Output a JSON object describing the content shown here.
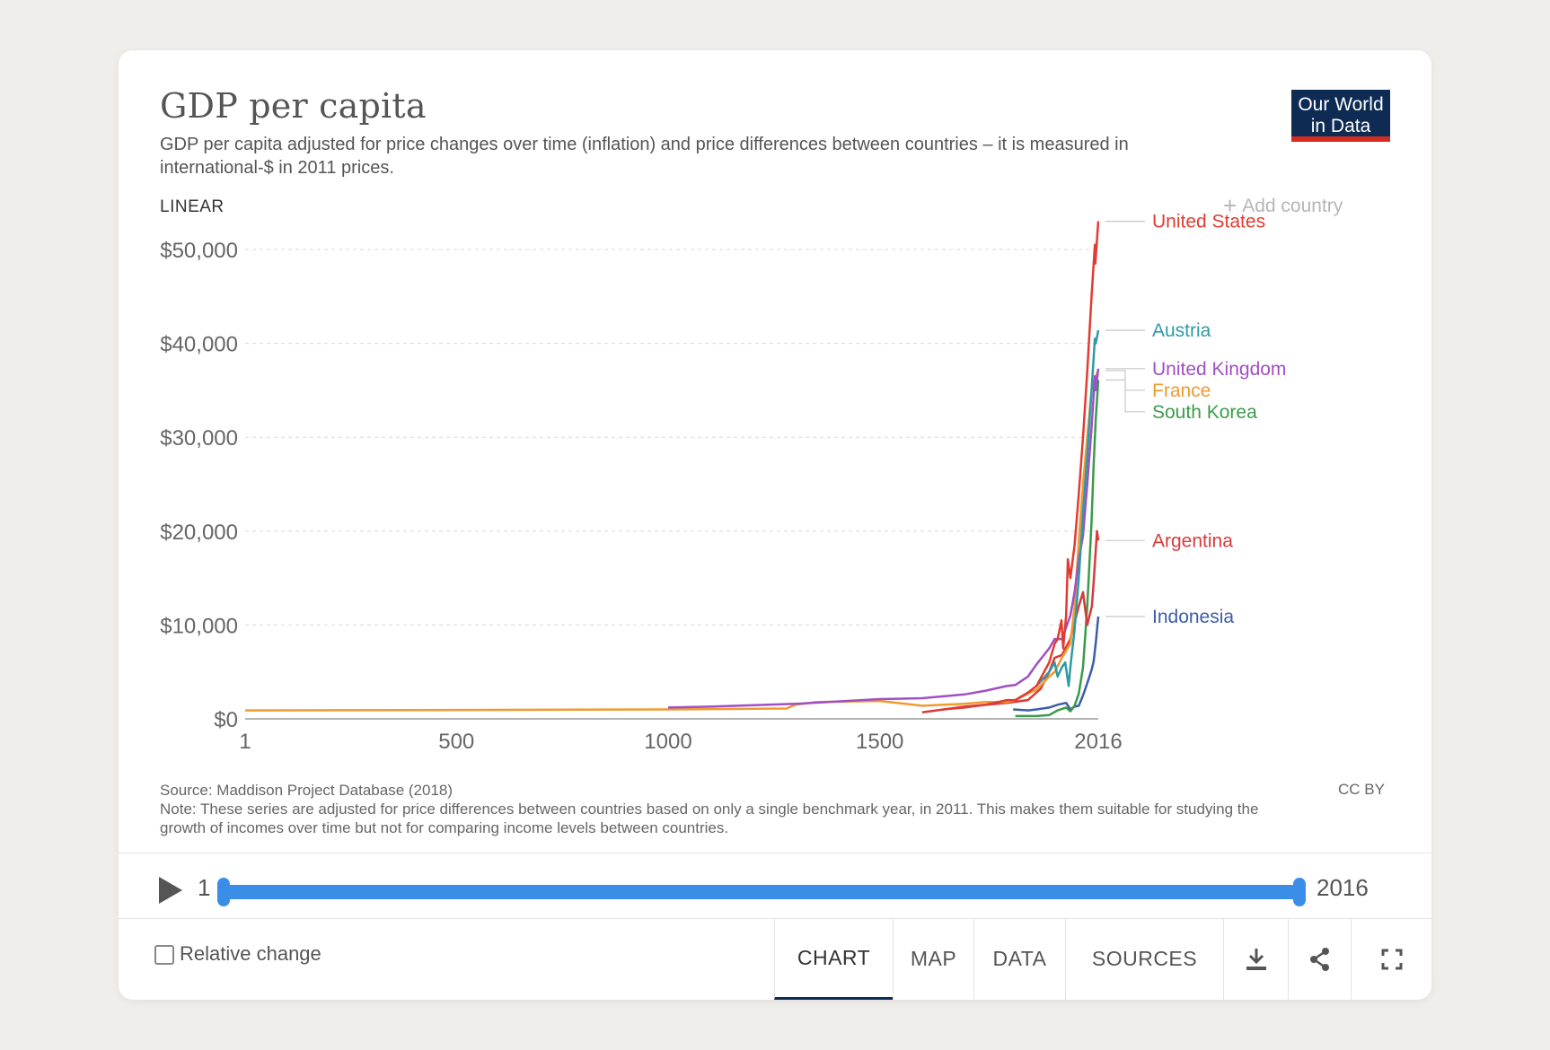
{
  "header": {
    "title": "GDP per capita",
    "subtitle": "GDP per capita adjusted for price changes over time (inflation) and price differences between countries – it is measured in international-$ in 2011 prices.",
    "logo_line1": "Our World",
    "logo_line2": "in Data"
  },
  "controls": {
    "scale_label": "LINEAR",
    "add_country_label": "Add country"
  },
  "chart_data": {
    "type": "line",
    "xlim": [
      1,
      2016
    ],
    "ylim": [
      0,
      50000
    ],
    "x_ticks": [
      1,
      500,
      1000,
      1500,
      2016
    ],
    "y_ticks": [
      0,
      10000,
      20000,
      30000,
      40000,
      50000
    ],
    "y_tick_labels": [
      "$0",
      "$10,000",
      "$20,000",
      "$30,000",
      "$40,000",
      "$50,000"
    ],
    "grid": true,
    "legend": "right",
    "series": [
      {
        "name": "Indonesia",
        "color": "#3c5da8",
        "x": [
          1815,
          1850,
          1870,
          1900,
          1920,
          1940,
          1950,
          1960,
          1970,
          1980,
          1990,
          2000,
          2005,
          2010,
          2016
        ],
        "y": [
          1000,
          900,
          1000,
          1200,
          1500,
          1700,
          1000,
          1300,
          1400,
          2500,
          3800,
          5200,
          6100,
          8100,
          10900
        ]
      },
      {
        "name": "South Korea",
        "color": "#3a9b49",
        "x": [
          1820,
          1870,
          1900,
          1920,
          1940,
          1950,
          1960,
          1970,
          1980,
          1990,
          2000,
          2005,
          2010,
          2016
        ],
        "y": [
          300,
          300,
          400,
          900,
          1200,
          800,
          1400,
          2700,
          5500,
          12000,
          21000,
          27000,
          32000,
          36100
        ]
      },
      {
        "name": "Argentina",
        "color": "#d73a3a",
        "x": [
          1600,
          1700,
          1800,
          1850,
          1880,
          1900,
          1913,
          1930,
          1950,
          1970,
          1980,
          1990,
          2001,
          2005,
          2010,
          2013,
          2016
        ],
        "y": [
          700,
          1300,
          1700,
          2000,
          3200,
          5000,
          6500,
          6800,
          8500,
          12000,
          13500,
          10000,
          12000,
          14500,
          18000,
          20000,
          19000
        ]
      },
      {
        "name": "France",
        "color": "#f09a30",
        "x": [
          1,
          500,
          1000,
          1280,
          1300,
          1350,
          1500,
          1600,
          1700,
          1750,
          1800,
          1820,
          1850,
          1870,
          1900,
          1913,
          1930,
          1950,
          1960,
          1970,
          1980,
          1990,
          2000,
          2010,
          2016
        ],
        "y": [
          900,
          950,
          1000,
          1100,
          1500,
          1800,
          1900,
          1400,
          1600,
          1800,
          1800,
          2000,
          2700,
          3100,
          4500,
          5000,
          6500,
          8000,
          12000,
          19000,
          25000,
          30000,
          35000,
          36500,
          37100
        ]
      },
      {
        "name": "United Kingdom",
        "color": "#a04fc4",
        "x": [
          1000,
          1100,
          1300,
          1500,
          1600,
          1700,
          1750,
          1800,
          1820,
          1850,
          1870,
          1900,
          1913,
          1930,
          1950,
          1960,
          1970,
          1980,
          1990,
          2000,
          2008,
          2010,
          2016
        ],
        "y": [
          1200,
          1300,
          1600,
          2100,
          2200,
          2600,
          3000,
          3500,
          3600,
          4500,
          5800,
          7500,
          8500,
          8500,
          11000,
          13500,
          17000,
          19500,
          25000,
          31000,
          36500,
          35000,
          37300
        ]
      },
      {
        "name": "Austria",
        "color": "#2e9aa4",
        "x": [
          1870,
          1900,
          1913,
          1920,
          1930,
          1938,
          1946,
          1950,
          1960,
          1970,
          1980,
          1990,
          2000,
          2008,
          2010,
          2016
        ],
        "y": [
          3500,
          5000,
          6000,
          4500,
          5500,
          6000,
          3500,
          5500,
          9500,
          15000,
          22000,
          28000,
          35000,
          40500,
          40000,
          41400
        ]
      },
      {
        "name": "United States",
        "color": "#e03c31",
        "x": [
          1650,
          1700,
          1750,
          1800,
          1820,
          1850,
          1870,
          1900,
          1913,
          1920,
          1929,
          1933,
          1940,
          1944,
          1950,
          1960,
          1970,
          1980,
          1990,
          2000,
          2008,
          2009,
          2016
        ],
        "y": [
          1000,
          1200,
          1500,
          2000,
          2000,
          2800,
          3500,
          6000,
          8000,
          8500,
          10500,
          7500,
          11000,
          17000,
          15000,
          18500,
          24000,
          30000,
          37000,
          45000,
          50500,
          48500,
          53000
        ]
      }
    ]
  },
  "footer": {
    "source": "Source: Maddison Project Database (2018)",
    "note": "Note: These series are adjusted for price differences between countries based on only a single benchmark year, in 2011. This makes them suitable for studying the growth of incomes over time but not for comparing income levels between countries.",
    "license": "CC BY"
  },
  "timeline": {
    "start": "1",
    "end": "2016"
  },
  "bottom_bar": {
    "relative_change_label": "Relative change",
    "tabs": [
      "CHART",
      "MAP",
      "DATA",
      "SOURCES"
    ]
  }
}
